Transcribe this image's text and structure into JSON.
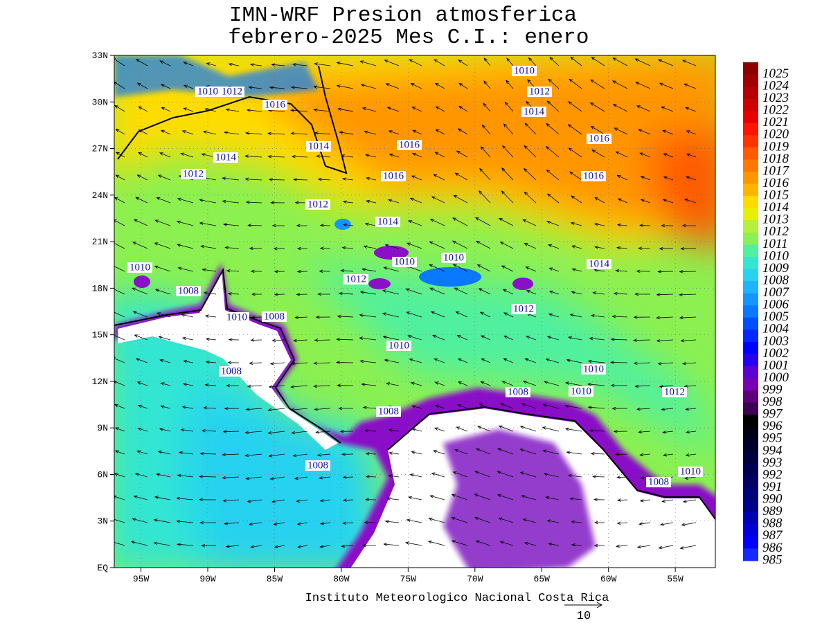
{
  "map_data": {
    "title": [
      "IMN-WRF  Presion atmosferica",
      "febrero-2025 Mes C.I.: enero"
    ],
    "footer": "Instituto Meteorologico Nacional Costa Rica",
    "vector_scale": "10",
    "xlim": [
      -97,
      -52
    ],
    "ylim": [
      0,
      33
    ],
    "xticks": [
      {
        "value": -95,
        "label": "95W"
      },
      {
        "value": -90,
        "label": "90W"
      },
      {
        "value": -85,
        "label": "85W"
      },
      {
        "value": -80,
        "label": "80W"
      },
      {
        "value": -75,
        "label": "75W"
      },
      {
        "value": -70,
        "label": "70W"
      },
      {
        "value": -65,
        "label": "65W"
      },
      {
        "value": -60,
        "label": "60W"
      },
      {
        "value": -55,
        "label": "55W"
      }
    ],
    "yticks": [
      {
        "value": 0,
        "label": "EQ"
      },
      {
        "value": 3,
        "label": "3N"
      },
      {
        "value": 6,
        "label": "6N"
      },
      {
        "value": 9,
        "label": "9N"
      },
      {
        "value": 12,
        "label": "12N"
      },
      {
        "value": 15,
        "label": "15N"
      },
      {
        "value": 18,
        "label": "18N"
      },
      {
        "value": 21,
        "label": "21N"
      },
      {
        "value": 24,
        "label": "24N"
      },
      {
        "value": 27,
        "label": "27N"
      },
      {
        "value": 30,
        "label": "30N"
      },
      {
        "value": 33,
        "label": "33N"
      }
    ],
    "colorbar": {
      "levels": [
        1025,
        1024,
        1023,
        1022,
        1021,
        1020,
        1019,
        1018,
        1017,
        1016,
        1015,
        1014,
        1013,
        1012,
        1011,
        1010,
        1009,
        1008,
        1007,
        1006,
        1005,
        1004,
        1003,
        1002,
        1001,
        1000,
        999,
        998,
        997,
        996,
        995,
        994,
        993,
        992,
        991,
        990,
        989,
        988,
        987,
        986,
        985
      ],
      "colors": [
        "#8c0000",
        "#a00000",
        "#b40000",
        "#cc0000",
        "#e60000",
        "#ff1400",
        "#ff3200",
        "#ff5a00",
        "#ff7800",
        "#ff9600",
        "#ffb400",
        "#ffdc00",
        "#e6f000",
        "#b4f03c",
        "#8cf050",
        "#50f0a0",
        "#32e6d2",
        "#28d2f0",
        "#1eb4ff",
        "#1496ff",
        "#0a78ff",
        "#0050ff",
        "#0028ff",
        "#0000ff",
        "#2800f0",
        "#5a00d2",
        "#7800b4",
        "#5a0078",
        "#3c0050",
        "#000000",
        "#000014",
        "#000028",
        "#00003c",
        "#000050",
        "#000064",
        "#000078",
        "#00008c",
        "#0000b4",
        "#0000dc",
        "#0000ff",
        "#1428ff"
      ]
    },
    "contour_labels": [
      "1010",
      "1012",
      "1014",
      "1016",
      "1016",
      "1010",
      "1012",
      "1016",
      "1014",
      "1016",
      "1014",
      "1012",
      "1016",
      "1012",
      "1014",
      "1010",
      "1010",
      "1010",
      "1014",
      "1008",
      "1012",
      "1012",
      "1010",
      "1008",
      "1010",
      "1010",
      "1008",
      "1008",
      "1010",
      "1012",
      "1008",
      "1008",
      "1008",
      "1010"
    ]
  }
}
